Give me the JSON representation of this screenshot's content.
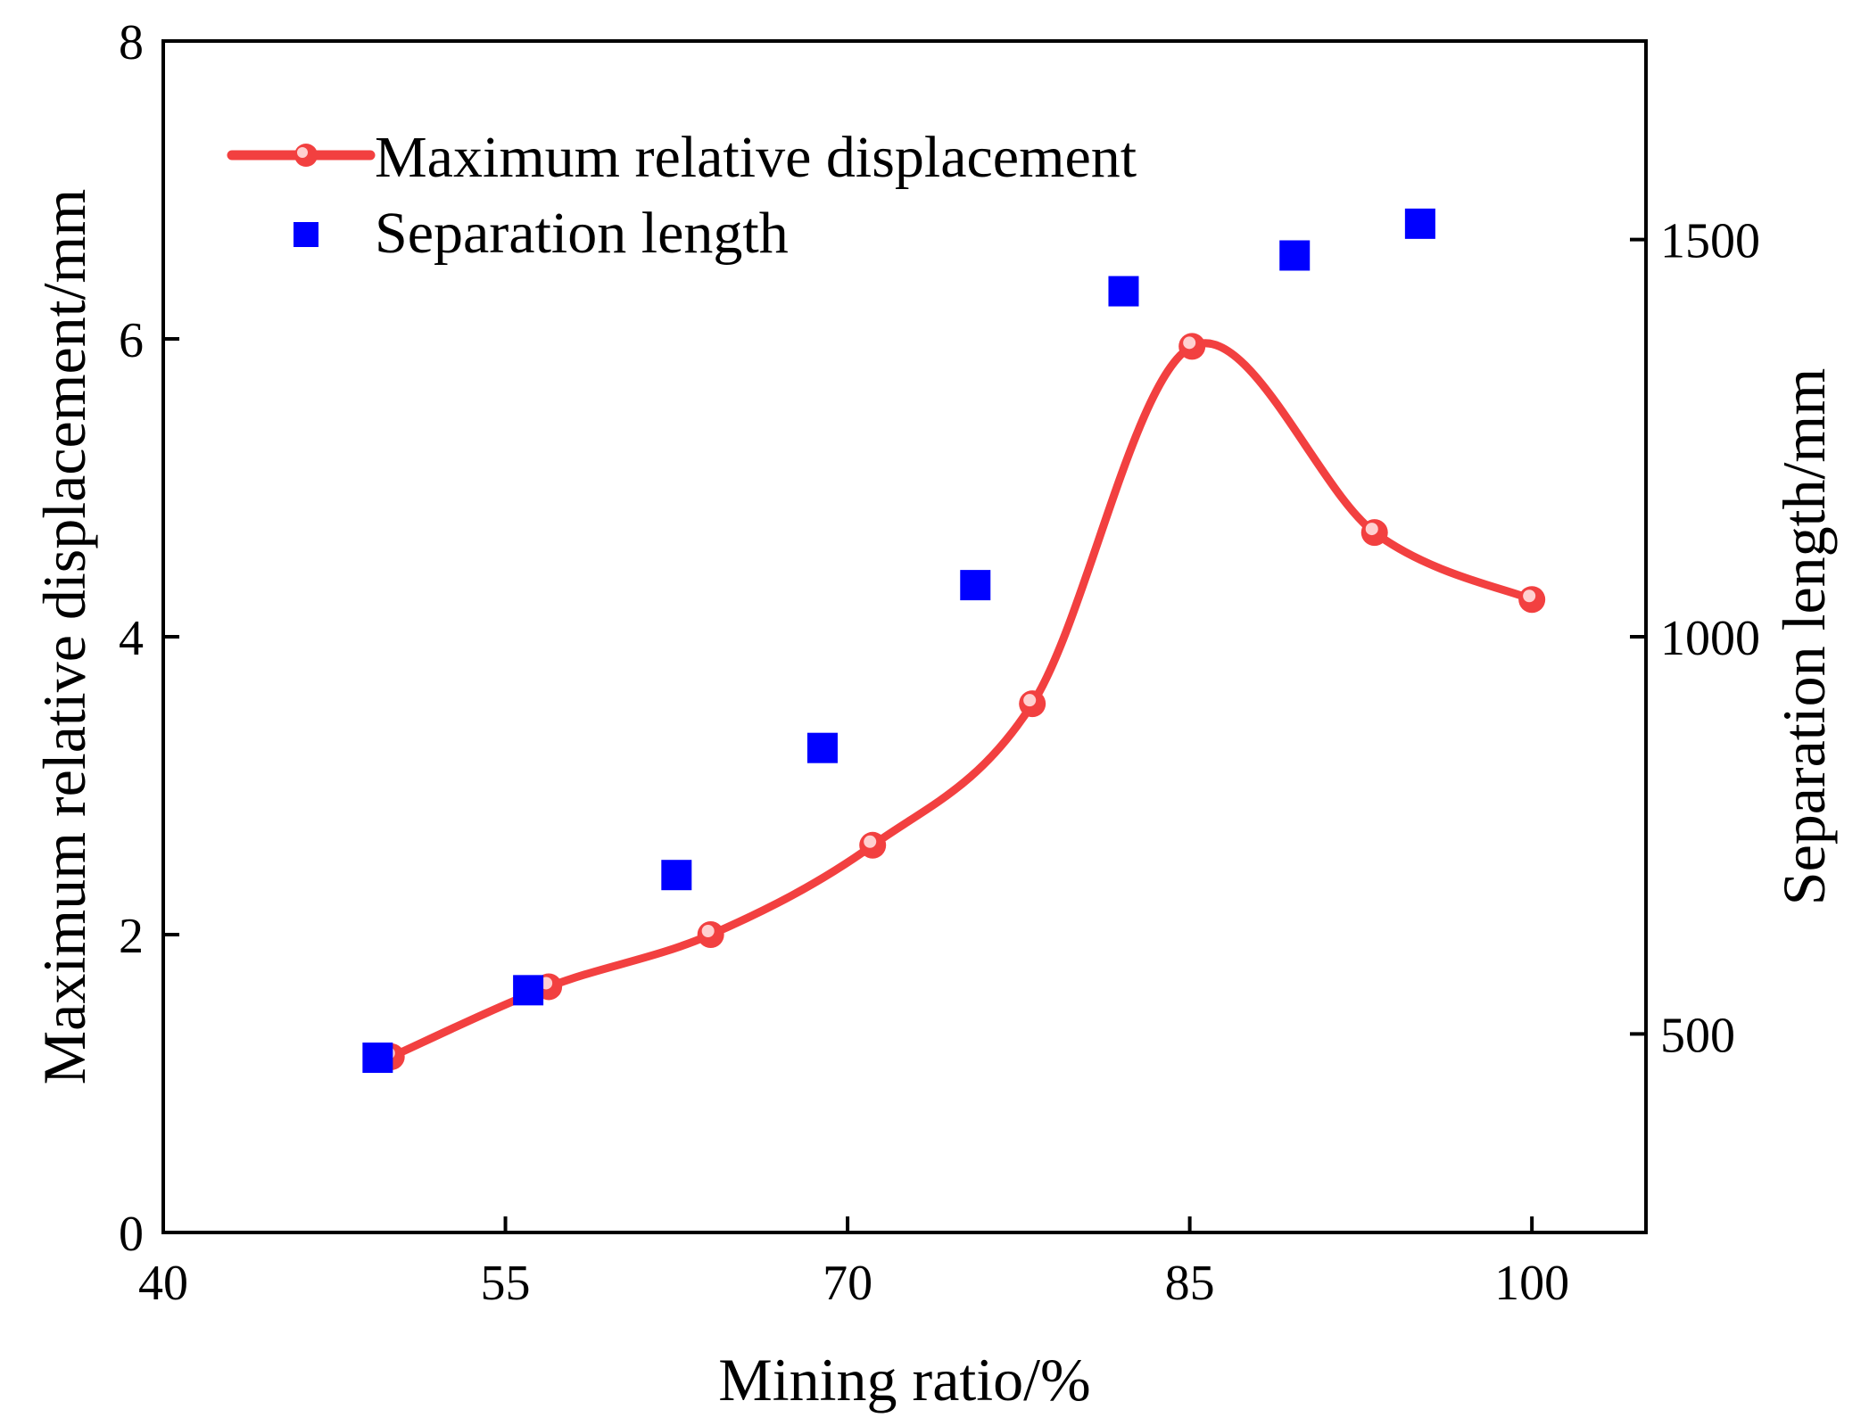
{
  "chart_data": {
    "type": "line",
    "title": "",
    "xlabel": "Mining ratio/%",
    "ylabel": "Maximum relative displacement/mm",
    "y2label": "Separation length/mm",
    "xlim": [
      40,
      105
    ],
    "ylim": [
      0,
      8
    ],
    "y2lim": [
      250,
      1750
    ],
    "xticks": [
      40,
      55,
      70,
      85,
      100
    ],
    "xtick_labels": [
      "40",
      "55",
      "70",
      "85",
      "100"
    ],
    "yticks": [
      0,
      2,
      4,
      6,
      8
    ],
    "ytick_labels": [
      "0",
      "2",
      "4",
      "6",
      "8"
    ],
    "y2ticks": [
      500,
      1000,
      1500
    ],
    "y2tick_labels": [
      "500",
      "1000",
      "1500"
    ],
    "grid": false,
    "legend_position": "top-left",
    "series": [
      {
        "name": "Maximum relative displacement",
        "axis": "left",
        "style": "smooth-line-with-markers",
        "color": "#f24040",
        "x": [
          50,
          56.9,
          64,
          71.1,
          78.1,
          85.1,
          93.1,
          100
        ],
        "values": [
          1.18,
          1.65,
          2.0,
          2.6,
          3.55,
          5.95,
          4.7,
          4.25
        ]
      },
      {
        "name": "Separation length",
        "axis": "right",
        "style": "markers",
        "color": "#0000ff",
        "x": [
          49.4,
          56,
          62.5,
          68.9,
          75.6,
          82.1,
          89.6,
          95.1
        ],
        "values": [
          470,
          555,
          700,
          860,
          1065,
          1435,
          1480,
          1520
        ]
      }
    ]
  }
}
